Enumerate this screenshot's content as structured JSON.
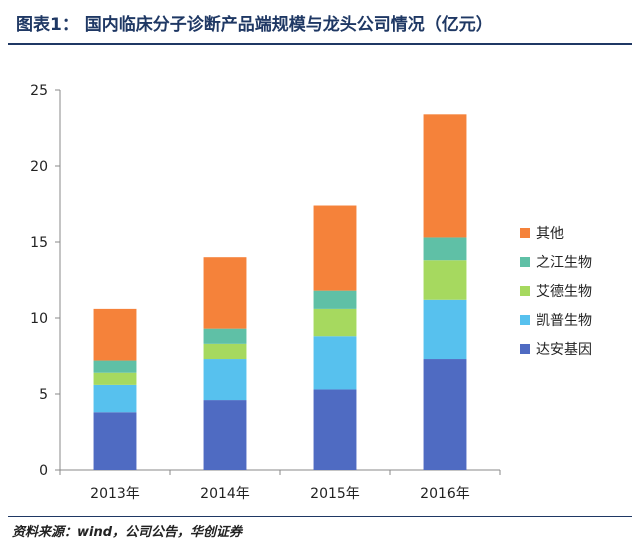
{
  "header": {
    "title": "图表1： 国内临床分子诊断产品端规模与龙头公司情况（亿元）"
  },
  "footer": {
    "source": "资料来源：wind，公司公告，华创证券"
  },
  "chart_data": {
    "type": "bar",
    "stacked": true,
    "categories": [
      "2013年",
      "2014年",
      "2015年",
      "2016年"
    ],
    "series": [
      {
        "name": "达安基因",
        "color": "#4f6bc2",
        "values": [
          3.8,
          4.6,
          5.3,
          7.3
        ]
      },
      {
        "name": "凯普生物",
        "color": "#57c1ee",
        "values": [
          1.8,
          2.7,
          3.5,
          3.9
        ]
      },
      {
        "name": "艾德生物",
        "color": "#a6d95f",
        "values": [
          0.8,
          1.0,
          1.8,
          2.6
        ]
      },
      {
        "name": "之江生物",
        "color": "#5fc0a6",
        "values": [
          0.8,
          1.0,
          1.2,
          1.5
        ]
      },
      {
        "name": "其他",
        "color": "#f5823a",
        "values": [
          3.4,
          4.7,
          5.6,
          8.1
        ]
      }
    ],
    "ylim": [
      0,
      25
    ],
    "yticks": [
      0,
      5,
      10,
      15,
      20,
      25
    ],
    "grid": false,
    "legend_position": "right"
  }
}
